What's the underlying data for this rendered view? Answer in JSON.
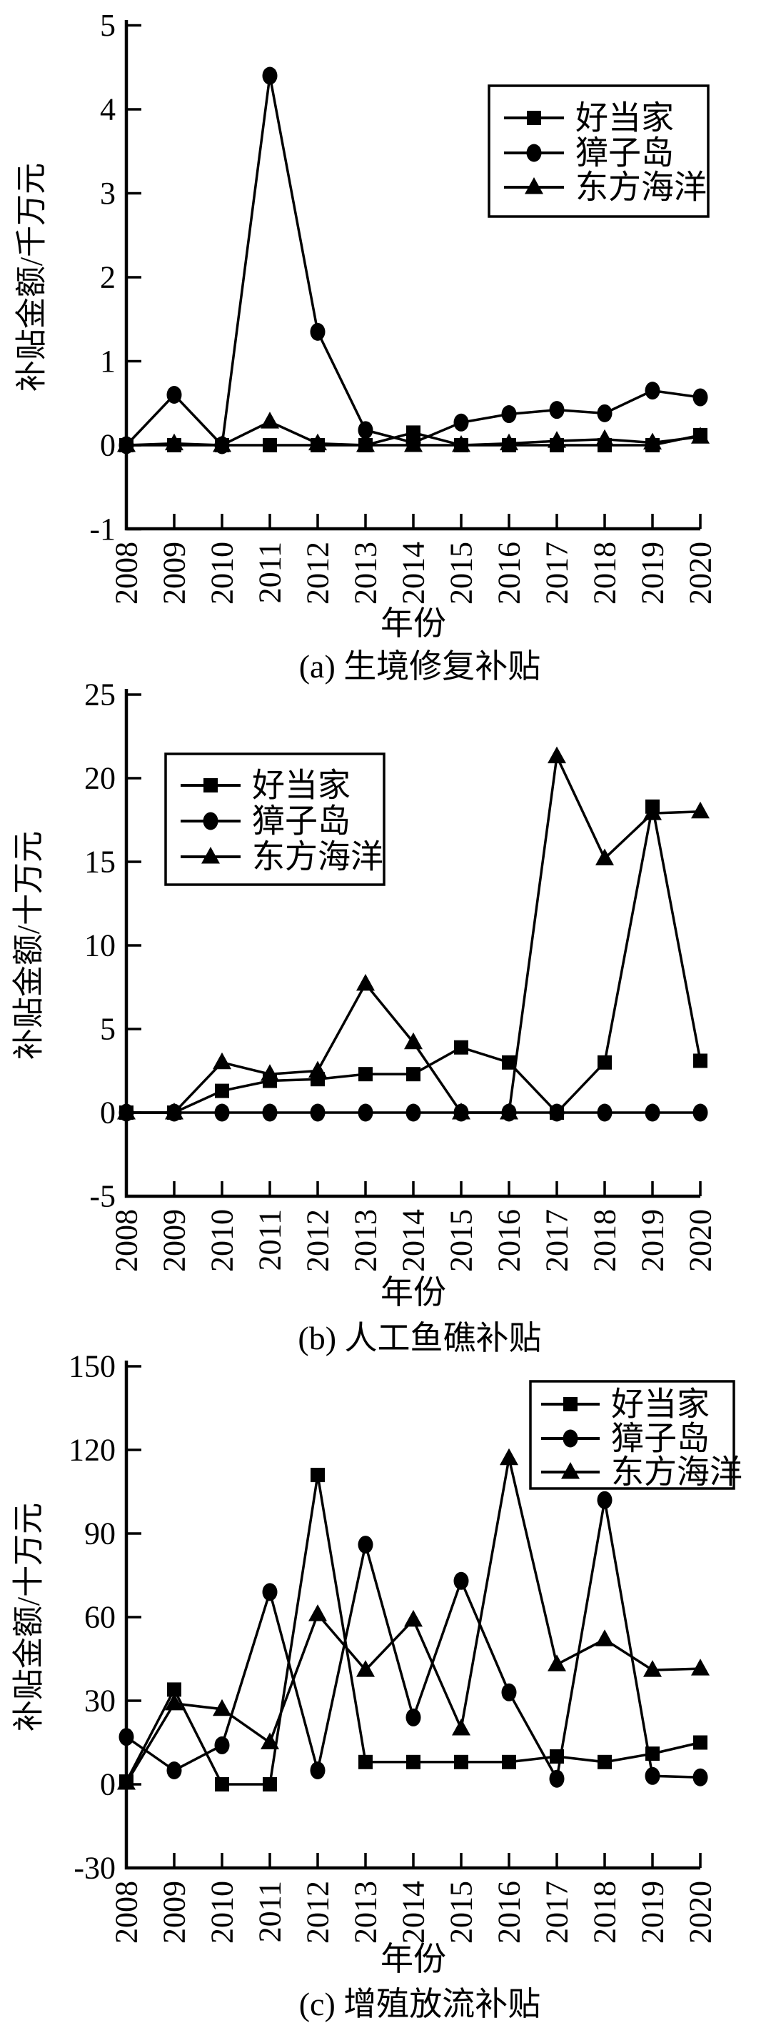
{
  "figure": {
    "background": "#ffffff",
    "ink_color": "#000000",
    "x_axis_label": "年份",
    "series_labels": [
      "好当家",
      "獐子岛",
      "东方海洋"
    ],
    "years": [
      2008,
      2009,
      2010,
      2011,
      2012,
      2013,
      2014,
      2015,
      2016,
      2017,
      2018,
      2019,
      2020
    ]
  },
  "chart_data": [
    {
      "type": "line",
      "panel": "a",
      "title": "(a) 生境修复补贴",
      "xlabel": "年份",
      "ylabel": "补贴金额/千万元",
      "ylim": [
        -1,
        5
      ],
      "ytick_step": 1,
      "ytick_labels": [
        "-1",
        "0",
        "1",
        "2",
        "3",
        "4",
        "5"
      ],
      "grid": false,
      "legend_position": "top-right",
      "x": [
        2008,
        2009,
        2010,
        2011,
        2012,
        2013,
        2014,
        2015,
        2016,
        2017,
        2018,
        2019,
        2020
      ],
      "series": [
        {
          "key": "haodangjia",
          "name": "好当家",
          "marker": "square",
          "values": [
            0,
            0,
            0,
            0,
            0,
            0,
            0.15,
            0,
            0,
            0,
            0,
            0,
            0.12
          ]
        },
        {
          "key": "zhangzidao",
          "name": "獐子岛",
          "marker": "circle",
          "values": [
            0,
            0.6,
            0,
            4.4,
            1.35,
            0.18,
            0.03,
            0.27,
            0.37,
            0.42,
            0.38,
            0.65,
            0.57
          ]
        },
        {
          "key": "dongfanghaiyang",
          "name": "东方海洋",
          "marker": "triangle",
          "values": [
            0,
            0.02,
            0,
            0.28,
            0.02,
            0,
            0,
            0,
            0.02,
            0.05,
            0.07,
            0.03,
            0.1
          ]
        }
      ]
    },
    {
      "type": "line",
      "panel": "b",
      "title": "(b) 人工鱼礁补贴",
      "xlabel": "年份",
      "ylabel": "补贴金额/十万元",
      "ylim": [
        -5,
        25
      ],
      "ytick_step": 5,
      "ytick_labels": [
        "-5",
        "0",
        "5",
        "10",
        "15",
        "20",
        "25"
      ],
      "grid": false,
      "legend_position": "top-left",
      "x": [
        2008,
        2009,
        2010,
        2011,
        2012,
        2013,
        2014,
        2015,
        2016,
        2017,
        2018,
        2019,
        2020
      ],
      "series": [
        {
          "key": "haodangjia",
          "name": "好当家",
          "marker": "square",
          "values": [
            0,
            0,
            1.3,
            1.9,
            2.0,
            2.3,
            2.3,
            3.9,
            3.0,
            0,
            3.0,
            18.3,
            3.1
          ]
        },
        {
          "key": "zhangzidao",
          "name": "獐子岛",
          "marker": "circle",
          "values": [
            0,
            0,
            0,
            0,
            0,
            0,
            0,
            0,
            0,
            0,
            0,
            0,
            0
          ]
        },
        {
          "key": "dongfanghaiyang",
          "name": "东方海洋",
          "marker": "triangle",
          "values": [
            0,
            0,
            3.0,
            2.3,
            2.5,
            7.7,
            4.2,
            0,
            0,
            21.3,
            15.2,
            17.9,
            18.0
          ]
        }
      ]
    },
    {
      "type": "line",
      "panel": "c",
      "title": "(c) 增殖放流补贴",
      "xlabel": "年份",
      "ylabel": "补贴金额/十万元",
      "ylim": [
        -30,
        150
      ],
      "ytick_step": 30,
      "ytick_labels": [
        "-30",
        "0",
        "30",
        "60",
        "90",
        "120",
        "150"
      ],
      "grid": false,
      "legend_position": "top-right",
      "x": [
        2008,
        2009,
        2010,
        2011,
        2012,
        2013,
        2014,
        2015,
        2016,
        2017,
        2018,
        2019,
        2020
      ],
      "series": [
        {
          "key": "haodangjia",
          "name": "好当家",
          "marker": "square",
          "values": [
            1,
            34,
            0,
            0,
            111,
            8,
            8,
            8,
            8,
            10,
            8,
            11,
            15
          ]
        },
        {
          "key": "zhangzidao",
          "name": "獐子岛",
          "marker": "circle",
          "values": [
            17,
            5,
            14,
            69,
            5,
            86,
            24,
            73,
            33,
            2,
            102,
            3,
            2.5
          ]
        },
        {
          "key": "dongfanghaiyang",
          "name": "东方海洋",
          "marker": "triangle",
          "values": [
            0.5,
            29,
            27,
            15,
            61,
            41,
            59,
            20,
            117,
            43,
            52,
            41,
            41.5
          ]
        }
      ]
    }
  ]
}
